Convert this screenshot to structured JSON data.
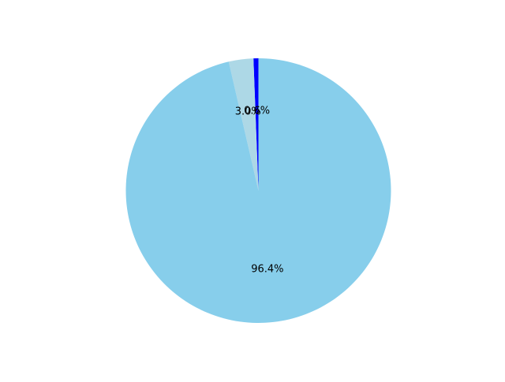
{
  "chart_data": {
    "type": "pie",
    "title": "",
    "slices": [
      {
        "label": "",
        "value": 0.6,
        "pct_label": "0.6%",
        "color": "#0000ff"
      },
      {
        "label": "",
        "value": 3.0,
        "pct_label": "3.0%",
        "color": "#add8e6"
      },
      {
        "label": "",
        "value": 96.4,
        "pct_label": "96.4%",
        "color": "#87ceeb"
      }
    ],
    "start_angle_deg": 90,
    "direction": "counterclockwise",
    "legend": "none"
  }
}
